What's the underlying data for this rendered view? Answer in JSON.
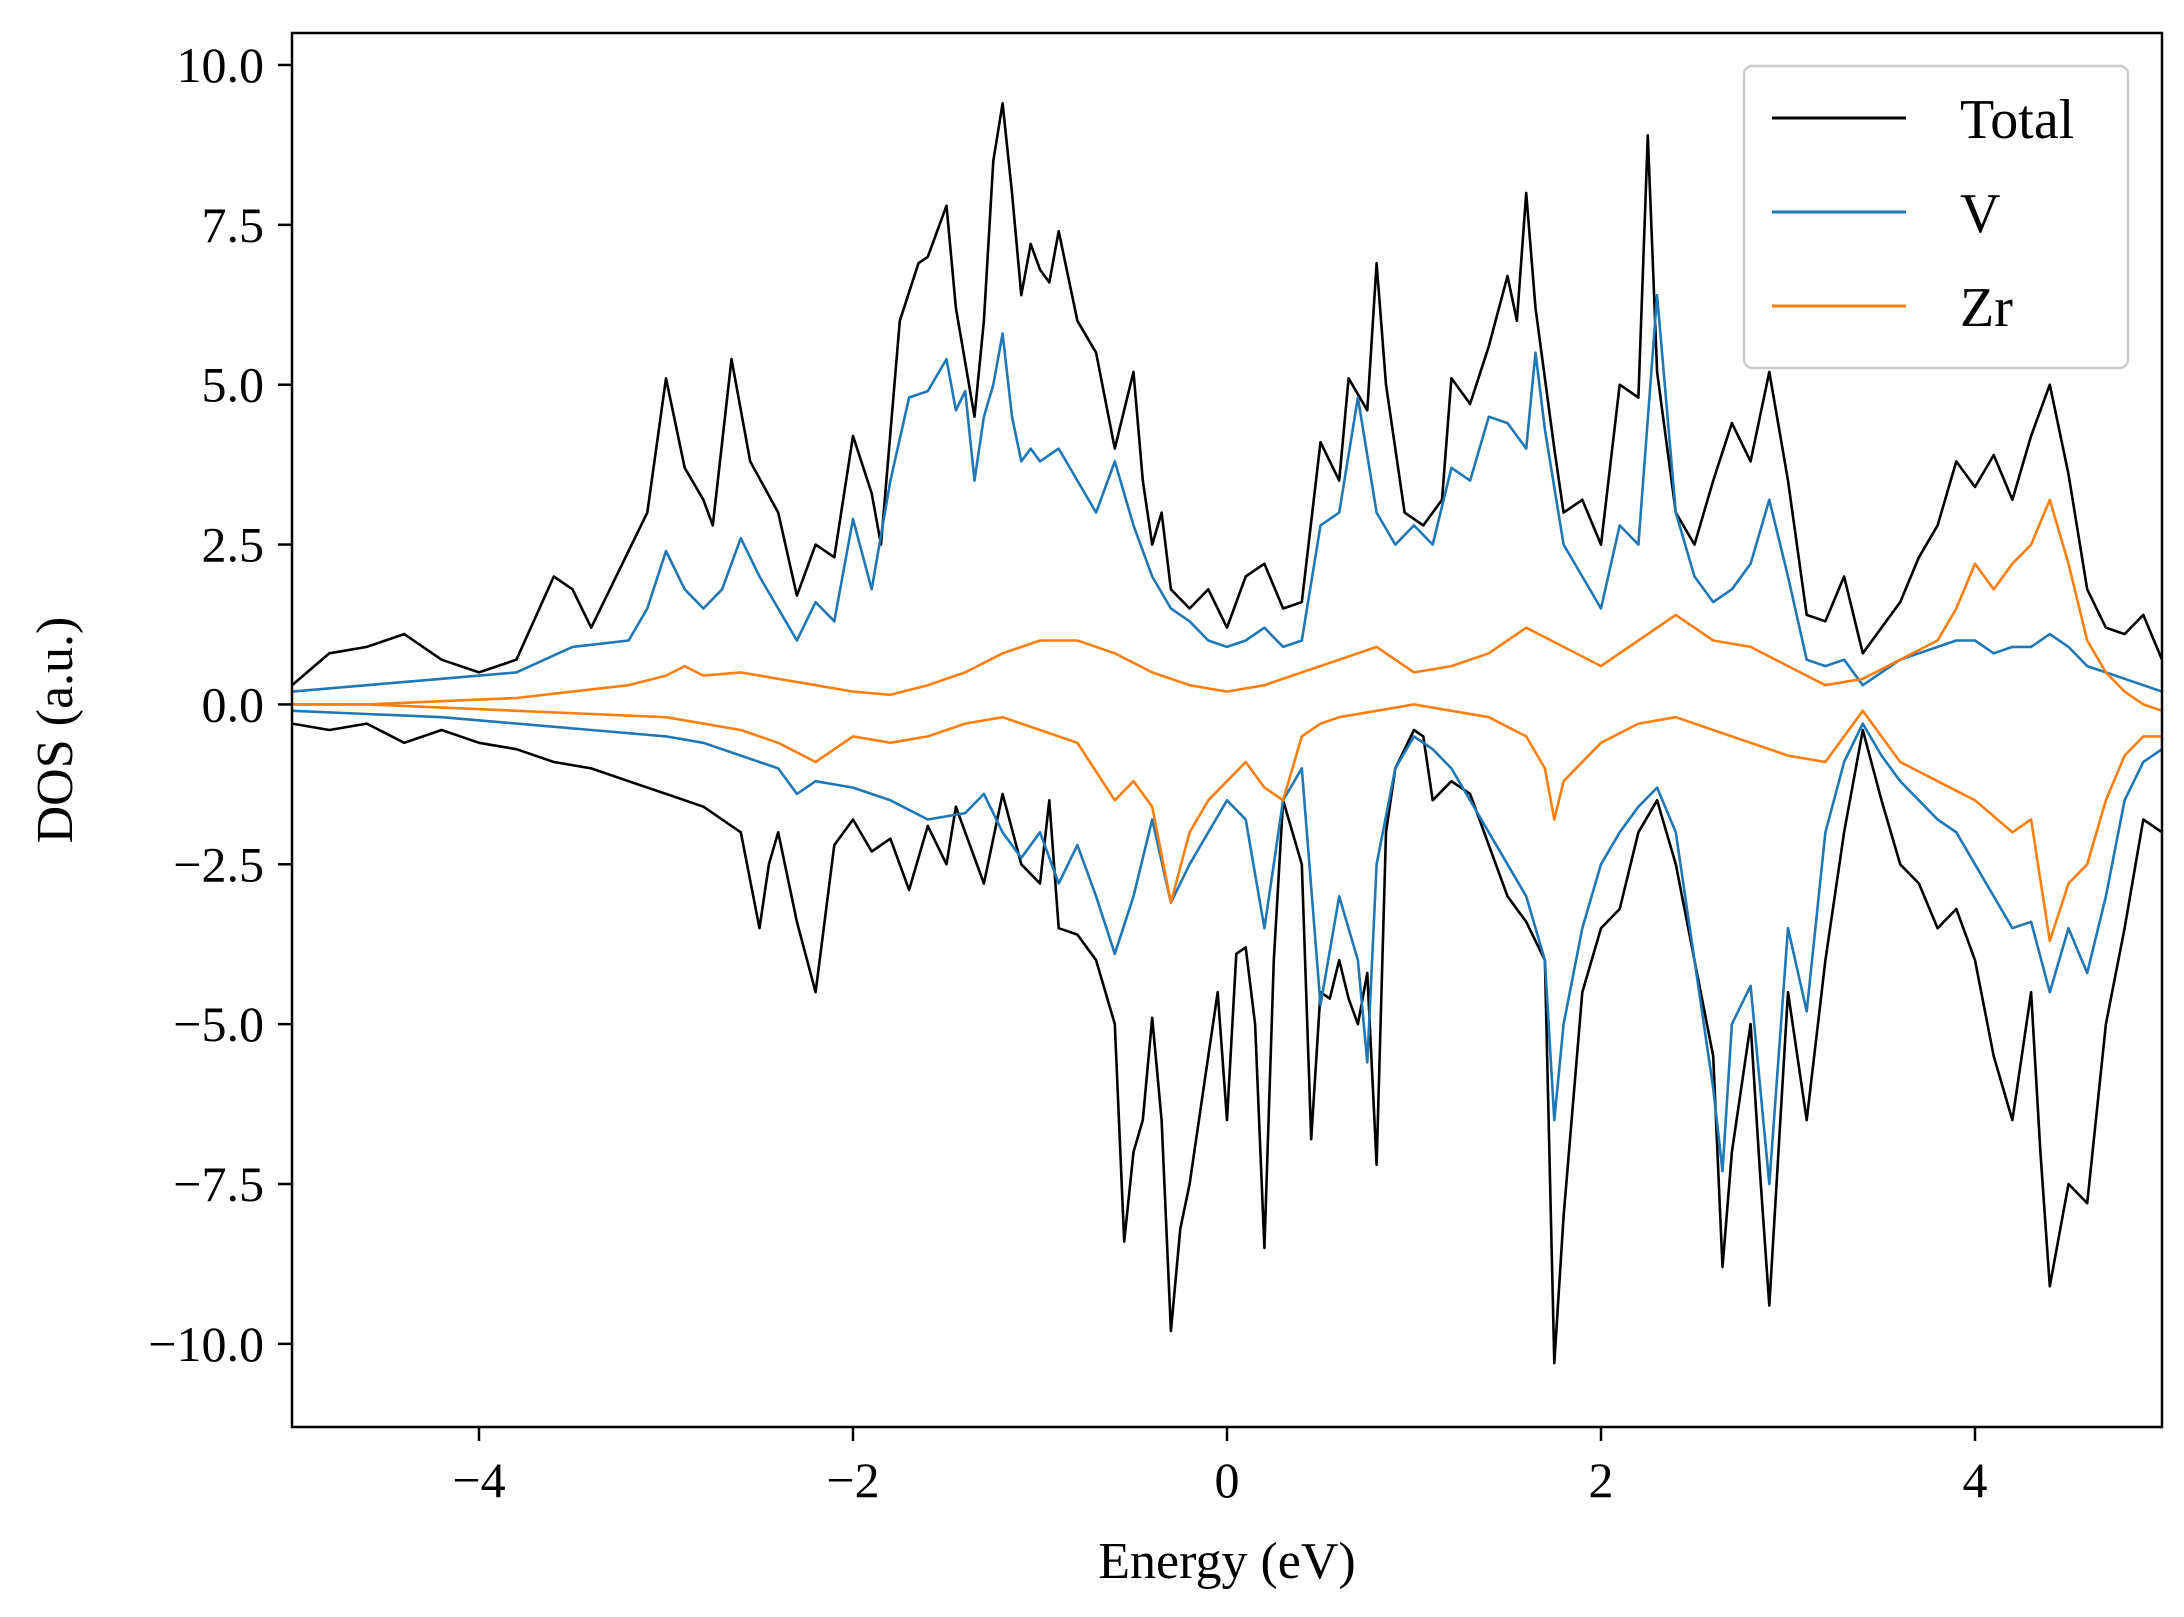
{
  "chart_data": {
    "type": "line",
    "title": "",
    "xlabel": "Energy (eV)",
    "ylabel": "DOS (a.u.)",
    "xlim": [
      -5,
      5
    ],
    "ylim": [
      -11.3,
      10.5
    ],
    "xticks": [
      -4,
      -2,
      0,
      2,
      4
    ],
    "xtick_labels": [
      "−4",
      "−2",
      "0",
      "2",
      "4"
    ],
    "yticks": [
      10,
      7.5,
      5,
      2.5,
      0,
      -2.5,
      -5,
      -7.5,
      -10
    ],
    "ytick_labels": [
      "10.0",
      "7.5",
      "5.0",
      "2.5",
      "0.0",
      "−2.5",
      "−5.0",
      "−7.5",
      "−10.0"
    ],
    "grid": false,
    "legend_position": "top-right",
    "colors": {
      "Total": "#000000",
      "V": "#1f77b4",
      "Zr": "#ff7f0e"
    },
    "series": [
      {
        "name": "Total",
        "spin": "up",
        "x": [
          -5.0,
          -4.8,
          -4.6,
          -4.4,
          -4.2,
          -4.0,
          -3.8,
          -3.6,
          -3.5,
          -3.4,
          -3.3,
          -3.1,
          -3.0,
          -2.9,
          -2.8,
          -2.75,
          -2.65,
          -2.55,
          -2.4,
          -2.3,
          -2.2,
          -2.1,
          -2.0,
          -1.9,
          -1.85,
          -1.75,
          -1.65,
          -1.6,
          -1.5,
          -1.45,
          -1.35,
          -1.3,
          -1.25,
          -1.2,
          -1.15,
          -1.1,
          -1.05,
          -1.0,
          -0.95,
          -0.9,
          -0.8,
          -0.7,
          -0.6,
          -0.5,
          -0.45,
          -0.4,
          -0.35,
          -0.3,
          -0.2,
          -0.1,
          0.0,
          0.1,
          0.2,
          0.3,
          0.4,
          0.5,
          0.6,
          0.65,
          0.75,
          0.8,
          0.85,
          0.95,
          1.05,
          1.15,
          1.2,
          1.3,
          1.4,
          1.5,
          1.55,
          1.6,
          1.65,
          1.75,
          1.8,
          1.9,
          2.0,
          2.1,
          2.2,
          2.25,
          2.3,
          2.4,
          2.5,
          2.6,
          2.7,
          2.8,
          2.9,
          3.0,
          3.1,
          3.2,
          3.3,
          3.4,
          3.5,
          3.6,
          3.7,
          3.8,
          3.9,
          4.0,
          4.1,
          4.2,
          4.3,
          4.4,
          4.5,
          4.6,
          4.7,
          4.8,
          4.9,
          5.0
        ],
        "y": [
          0.3,
          0.8,
          0.9,
          1.1,
          0.7,
          0.5,
          0.7,
          2.0,
          1.8,
          1.2,
          1.8,
          3.0,
          5.1,
          3.7,
          3.2,
          2.8,
          5.4,
          3.8,
          3.0,
          1.7,
          2.5,
          2.3,
          4.2,
          3.3,
          2.5,
          6.0,
          6.9,
          7.0,
          7.8,
          6.2,
          4.5,
          6.0,
          8.5,
          9.4,
          8.0,
          6.4,
          7.2,
          6.8,
          6.6,
          7.4,
          6.0,
          5.5,
          4.0,
          5.2,
          3.5,
          2.5,
          3.0,
          1.8,
          1.5,
          1.8,
          1.2,
          2.0,
          2.2,
          1.5,
          1.6,
          4.1,
          3.5,
          5.1,
          4.6,
          6.9,
          5.0,
          3.0,
          2.8,
          3.2,
          5.1,
          4.7,
          5.6,
          6.7,
          6.0,
          8.0,
          6.2,
          4.0,
          3.0,
          3.2,
          2.5,
          5.0,
          4.8,
          8.9,
          5.2,
          3.0,
          2.5,
          3.5,
          4.4,
          3.8,
          5.2,
          3.5,
          1.4,
          1.3,
          2.0,
          0.8,
          1.2,
          1.6,
          2.3,
          2.8,
          3.8,
          3.4,
          3.9,
          3.2,
          4.2,
          5.0,
          3.6,
          1.8,
          1.2,
          1.1,
          1.4,
          0.7
        ]
      },
      {
        "name": "Total",
        "spin": "down",
        "x": [
          -5.0,
          -4.8,
          -4.6,
          -4.4,
          -4.2,
          -4.0,
          -3.8,
          -3.6,
          -3.4,
          -3.2,
          -3.0,
          -2.8,
          -2.6,
          -2.5,
          -2.45,
          -2.4,
          -2.3,
          -2.2,
          -2.1,
          -2.0,
          -1.9,
          -1.8,
          -1.7,
          -1.6,
          -1.5,
          -1.45,
          -1.4,
          -1.3,
          -1.2,
          -1.1,
          -1.0,
          -0.95,
          -0.9,
          -0.8,
          -0.7,
          -0.6,
          -0.55,
          -0.5,
          -0.45,
          -0.4,
          -0.35,
          -0.3,
          -0.25,
          -0.2,
          -0.1,
          -0.05,
          0.0,
          0.05,
          0.1,
          0.15,
          0.2,
          0.25,
          0.3,
          0.4,
          0.45,
          0.5,
          0.55,
          0.6,
          0.65,
          0.7,
          0.75,
          0.8,
          0.85,
          0.9,
          1.0,
          1.05,
          1.1,
          1.2,
          1.3,
          1.4,
          1.5,
          1.6,
          1.7,
          1.75,
          1.8,
          1.9,
          2.0,
          2.1,
          2.2,
          2.3,
          2.4,
          2.5,
          2.6,
          2.65,
          2.7,
          2.8,
          2.85,
          2.9,
          3.0,
          3.1,
          3.2,
          3.3,
          3.4,
          3.5,
          3.6,
          3.7,
          3.8,
          3.9,
          4.0,
          4.1,
          4.2,
          4.3,
          4.35,
          4.4,
          4.5,
          4.6,
          4.7,
          4.8,
          4.9,
          5.0
        ],
        "y": [
          -0.3,
          -0.4,
          -0.3,
          -0.6,
          -0.4,
          -0.6,
          -0.7,
          -0.9,
          -1.0,
          -1.2,
          -1.4,
          -1.6,
          -2.0,
          -3.5,
          -2.5,
          -2.0,
          -3.4,
          -4.5,
          -2.2,
          -1.8,
          -2.3,
          -2.1,
          -2.9,
          -1.9,
          -2.5,
          -1.6,
          -2.0,
          -2.8,
          -1.4,
          -2.5,
          -2.8,
          -1.5,
          -3.5,
          -3.6,
          -4.0,
          -5.0,
          -8.4,
          -7.0,
          -6.5,
          -4.9,
          -6.5,
          -9.8,
          -8.2,
          -7.5,
          -5.5,
          -4.5,
          -6.5,
          -3.9,
          -3.8,
          -5.0,
          -8.5,
          -4.0,
          -1.5,
          -2.5,
          -6.8,
          -4.5,
          -4.6,
          -4.0,
          -4.6,
          -5.0,
          -4.2,
          -7.2,
          -2.0,
          -1.0,
          -0.4,
          -0.5,
          -1.5,
          -1.2,
          -1.4,
          -2.2,
          -3.0,
          -3.4,
          -4.0,
          -10.3,
          -8.0,
          -4.5,
          -3.5,
          -3.2,
          -2.0,
          -1.5,
          -2.5,
          -4.0,
          -5.5,
          -8.8,
          -7.0,
          -5.0,
          -7.3,
          -9.4,
          -4.5,
          -6.5,
          -4.0,
          -2.0,
          -0.4,
          -1.5,
          -2.5,
          -2.8,
          -3.5,
          -3.2,
          -4.0,
          -5.5,
          -6.5,
          -4.5,
          -7.0,
          -9.1,
          -7.5,
          -7.8,
          -5.0,
          -3.5,
          -1.8,
          -2.0
        ]
      },
      {
        "name": "V",
        "spin": "up",
        "x": [
          -5.0,
          -4.6,
          -4.2,
          -3.8,
          -3.5,
          -3.2,
          -3.1,
          -3.0,
          -2.9,
          -2.8,
          -2.7,
          -2.6,
          -2.5,
          -2.4,
          -2.3,
          -2.2,
          -2.1,
          -2.0,
          -1.9,
          -1.8,
          -1.7,
          -1.6,
          -1.5,
          -1.45,
          -1.4,
          -1.35,
          -1.3,
          -1.25,
          -1.2,
          -1.15,
          -1.1,
          -1.05,
          -1.0,
          -0.9,
          -0.8,
          -0.7,
          -0.6,
          -0.5,
          -0.4,
          -0.3,
          -0.2,
          -0.1,
          0.0,
          0.1,
          0.2,
          0.3,
          0.4,
          0.5,
          0.6,
          0.7,
          0.8,
          0.9,
          1.0,
          1.1,
          1.2,
          1.3,
          1.4,
          1.5,
          1.6,
          1.65,
          1.7,
          1.8,
          1.9,
          2.0,
          2.1,
          2.2,
          2.3,
          2.4,
          2.5,
          2.6,
          2.7,
          2.8,
          2.9,
          3.0,
          3.1,
          3.2,
          3.3,
          3.4,
          3.5,
          3.6,
          3.7,
          3.8,
          3.9,
          4.0,
          4.1,
          4.2,
          4.3,
          4.4,
          4.5,
          4.6,
          4.7,
          4.8,
          4.9,
          5.0
        ],
        "y": [
          0.2,
          0.3,
          0.4,
          0.5,
          0.9,
          1.0,
          1.5,
          2.4,
          1.8,
          1.5,
          1.8,
          2.6,
          2.0,
          1.5,
          1.0,
          1.6,
          1.3,
          2.9,
          1.8,
          3.5,
          4.8,
          4.9,
          5.4,
          4.6,
          4.9,
          3.5,
          4.5,
          5.0,
          5.8,
          4.5,
          3.8,
          4.0,
          3.8,
          4.0,
          3.5,
          3.0,
          3.8,
          2.8,
          2.0,
          1.5,
          1.3,
          1.0,
          0.9,
          1.0,
          1.2,
          0.9,
          1.0,
          2.8,
          3.0,
          4.8,
          3.0,
          2.5,
          2.8,
          2.5,
          3.7,
          3.5,
          4.5,
          4.4,
          4.0,
          5.5,
          4.3,
          2.5,
          2.0,
          1.5,
          2.8,
          2.5,
          6.4,
          3.0,
          2.0,
          1.6,
          1.8,
          2.2,
          3.2,
          2.0,
          0.7,
          0.6,
          0.7,
          0.3,
          0.5,
          0.7,
          0.8,
          0.9,
          1.0,
          1.0,
          0.8,
          0.9,
          0.9,
          1.1,
          0.9,
          0.6,
          0.5,
          0.4,
          0.3,
          0.2
        ]
      },
      {
        "name": "V",
        "spin": "down",
        "x": [
          -5.0,
          -4.6,
          -4.2,
          -3.8,
          -3.4,
          -3.0,
          -2.8,
          -2.6,
          -2.4,
          -2.3,
          -2.2,
          -2.0,
          -1.8,
          -1.6,
          -1.4,
          -1.3,
          -1.2,
          -1.1,
          -1.0,
          -0.9,
          -0.8,
          -0.7,
          -0.6,
          -0.5,
          -0.4,
          -0.3,
          -0.2,
          -0.1,
          0.0,
          0.1,
          0.2,
          0.3,
          0.4,
          0.5,
          0.6,
          0.7,
          0.75,
          0.8,
          0.9,
          1.0,
          1.1,
          1.2,
          1.3,
          1.4,
          1.5,
          1.6,
          1.7,
          1.75,
          1.8,
          1.9,
          2.0,
          2.1,
          2.2,
          2.3,
          2.4,
          2.5,
          2.6,
          2.65,
          2.7,
          2.8,
          2.9,
          3.0,
          3.1,
          3.2,
          3.3,
          3.4,
          3.5,
          3.6,
          3.7,
          3.8,
          3.9,
          4.0,
          4.1,
          4.2,
          4.3,
          4.4,
          4.5,
          4.6,
          4.7,
          4.8,
          4.9,
          5.0
        ],
        "y": [
          -0.1,
          -0.15,
          -0.2,
          -0.3,
          -0.4,
          -0.5,
          -0.6,
          -0.8,
          -1.0,
          -1.4,
          -1.2,
          -1.3,
          -1.5,
          -1.8,
          -1.7,
          -1.4,
          -2.0,
          -2.4,
          -2.0,
          -2.8,
          -2.2,
          -3.0,
          -3.9,
          -3.0,
          -1.8,
          -3.1,
          -2.5,
          -2.0,
          -1.5,
          -1.8,
          -3.5,
          -1.5,
          -1.0,
          -4.7,
          -3.0,
          -4.0,
          -5.6,
          -2.5,
          -1.0,
          -0.5,
          -0.7,
          -1.0,
          -1.5,
          -2.0,
          -2.5,
          -3.0,
          -4.0,
          -6.5,
          -5.0,
          -3.5,
          -2.5,
          -2.0,
          -1.6,
          -1.3,
          -2.0,
          -4.0,
          -6.0,
          -7.3,
          -5.0,
          -4.4,
          -7.5,
          -3.5,
          -4.8,
          -2.0,
          -0.9,
          -0.3,
          -0.8,
          -1.2,
          -1.5,
          -1.8,
          -2.0,
          -2.5,
          -3.0,
          -3.5,
          -3.4,
          -4.5,
          -3.5,
          -4.2,
          -3.0,
          -1.5,
          -0.9,
          -0.7
        ]
      },
      {
        "name": "Zr",
        "spin": "up",
        "x": [
          -5.0,
          -4.6,
          -4.2,
          -3.8,
          -3.5,
          -3.2,
          -3.0,
          -2.9,
          -2.8,
          -2.6,
          -2.4,
          -2.2,
          -2.0,
          -1.8,
          -1.6,
          -1.4,
          -1.2,
          -1.0,
          -0.8,
          -0.6,
          -0.4,
          -0.2,
          0.0,
          0.2,
          0.4,
          0.6,
          0.8,
          1.0,
          1.2,
          1.4,
          1.6,
          1.8,
          2.0,
          2.2,
          2.4,
          2.6,
          2.8,
          3.0,
          3.2,
          3.4,
          3.6,
          3.8,
          3.9,
          4.0,
          4.1,
          4.2,
          4.3,
          4.4,
          4.5,
          4.6,
          4.7,
          4.8,
          4.9,
          5.0
        ],
        "y": [
          0.0,
          0.0,
          0.05,
          0.1,
          0.2,
          0.3,
          0.45,
          0.6,
          0.45,
          0.5,
          0.4,
          0.3,
          0.2,
          0.15,
          0.3,
          0.5,
          0.8,
          1.0,
          1.0,
          0.8,
          0.5,
          0.3,
          0.2,
          0.3,
          0.5,
          0.7,
          0.9,
          0.5,
          0.6,
          0.8,
          1.2,
          0.9,
          0.6,
          1.0,
          1.4,
          1.0,
          0.9,
          0.6,
          0.3,
          0.4,
          0.7,
          1.0,
          1.5,
          2.2,
          1.8,
          2.2,
          2.5,
          3.2,
          2.2,
          1.0,
          0.5,
          0.2,
          0.0,
          -0.1
        ]
      },
      {
        "name": "Zr",
        "spin": "down",
        "x": [
          -5.0,
          -4.6,
          -4.2,
          -3.8,
          -3.4,
          -3.0,
          -2.6,
          -2.4,
          -2.2,
          -2.0,
          -1.8,
          -1.6,
          -1.4,
          -1.2,
          -1.0,
          -0.8,
          -0.6,
          -0.5,
          -0.4,
          -0.3,
          -0.2,
          -0.1,
          0.0,
          0.1,
          0.2,
          0.3,
          0.4,
          0.5,
          0.6,
          0.8,
          1.0,
          1.2,
          1.4,
          1.6,
          1.7,
          1.75,
          1.8,
          2.0,
          2.2,
          2.4,
          2.6,
          2.8,
          3.0,
          3.2,
          3.4,
          3.5,
          3.6,
          3.8,
          4.0,
          4.2,
          4.3,
          4.4,
          4.5,
          4.6,
          4.7,
          4.8,
          4.9,
          5.0
        ],
        "y": [
          0.0,
          0.0,
          -0.05,
          -0.1,
          -0.15,
          -0.2,
          -0.4,
          -0.6,
          -0.9,
          -0.5,
          -0.6,
          -0.5,
          -0.3,
          -0.2,
          -0.4,
          -0.6,
          -1.5,
          -1.2,
          -1.6,
          -3.1,
          -2.0,
          -1.5,
          -1.2,
          -0.9,
          -1.3,
          -1.5,
          -0.5,
          -0.3,
          -0.2,
          -0.1,
          0.0,
          -0.1,
          -0.2,
          -0.5,
          -1.0,
          -1.8,
          -1.2,
          -0.6,
          -0.3,
          -0.2,
          -0.4,
          -0.6,
          -0.8,
          -0.9,
          -0.1,
          -0.5,
          -0.9,
          -1.2,
          -1.5,
          -2.0,
          -1.8,
          -3.7,
          -2.8,
          -2.5,
          -1.5,
          -0.8,
          -0.5,
          -0.5
        ]
      }
    ]
  }
}
